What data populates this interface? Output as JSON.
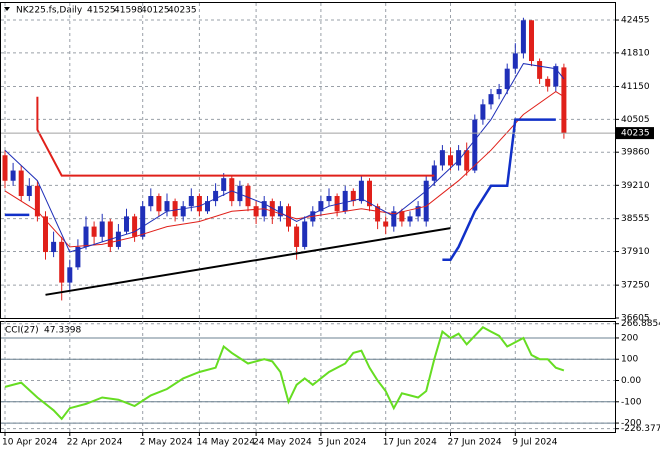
{
  "chart_data": [
    {
      "type": "candlestick",
      "title": "NK225.fs,Daily",
      "categories": [
        "10 Apr 2024",
        null,
        null,
        null,
        null,
        null,
        null,
        null,
        "22 Apr 2024",
        null,
        null,
        null,
        null,
        null,
        null,
        null,
        null,
        "2 May 2024",
        null,
        null,
        null,
        null,
        null,
        null,
        "14 May 2024",
        null,
        null,
        null,
        null,
        null,
        null,
        "24 May 2024",
        null,
        null,
        null,
        null,
        null,
        null,
        null,
        "5 Jun 2024",
        null,
        null,
        null,
        null,
        null,
        null,
        null,
        "17 Jun 2024",
        null,
        null,
        null,
        null,
        null,
        null,
        null,
        "27 Jun 2024",
        null,
        null,
        null,
        null,
        null,
        null,
        null,
        "9 Jul 2024",
        null,
        null,
        null,
        null,
        null,
        null
      ],
      "open": [
        39800,
        39300,
        39500,
        39000,
        39200,
        38600,
        37900,
        38100,
        37300,
        37600,
        38000,
        38400,
        38200,
        38500,
        38000,
        38300,
        38600,
        38200,
        38800,
        39000,
        38700,
        38900,
        38600,
        38800,
        39000,
        38700,
        38900,
        39100,
        39350,
        38900,
        39200,
        38800,
        38600,
        38900,
        38600,
        38800,
        38400,
        38000,
        38500,
        38700,
        38900,
        39000,
        38700,
        39100,
        38900,
        39300,
        38800,
        38500,
        38400,
        38700,
        38500,
        38600,
        38500,
        39300,
        39600,
        39800,
        39600,
        39900,
        39500,
        40500,
        40800,
        41000,
        41100,
        41500,
        41800,
        42450,
        41650,
        41300,
        41150,
        41525
      ],
      "high": [
        39900,
        39650,
        39600,
        39350,
        39300,
        38700,
        38300,
        38200,
        37750,
        38150,
        38600,
        38500,
        38650,
        38550,
        38450,
        38750,
        38650,
        38900,
        39150,
        39050,
        39050,
        38950,
        38900,
        39150,
        39050,
        39000,
        39250,
        39450,
        39400,
        39300,
        39250,
        38900,
        39000,
        38950,
        38900,
        38850,
        38450,
        38600,
        38800,
        39000,
        39150,
        39050,
        39200,
        39150,
        39400,
        39350,
        38850,
        38600,
        38800,
        38750,
        38700,
        38900,
        39400,
        39700,
        40000,
        39950,
        40000,
        40050,
        40600,
        40900,
        41100,
        41200,
        41600,
        42000,
        42500,
        42450,
        41700,
        41350,
        41600,
        41598
      ],
      "low": [
        39150,
        39200,
        38900,
        38900,
        38500,
        37750,
        37800,
        36950,
        37150,
        37550,
        37950,
        38050,
        38100,
        37900,
        37950,
        38250,
        38100,
        38150,
        38700,
        38600,
        38600,
        38500,
        38500,
        38700,
        38600,
        38650,
        38800,
        39000,
        38800,
        38800,
        38700,
        38450,
        38500,
        38450,
        38500,
        38300,
        37750,
        37950,
        38400,
        38600,
        38800,
        38600,
        38650,
        38800,
        38850,
        38700,
        38350,
        38250,
        38300,
        38400,
        38400,
        38500,
        38400,
        39200,
        39500,
        39500,
        39500,
        39400,
        39450,
        40400,
        40700,
        40900,
        41000,
        41400,
        41700,
        41550,
        41200,
        41050,
        41050,
        40125
      ],
      "close": [
        39300,
        39500,
        39000,
        39200,
        38600,
        37900,
        38100,
        37300,
        37600,
        38000,
        38400,
        38200,
        38500,
        38000,
        38300,
        38600,
        38200,
        38800,
        39000,
        38700,
        38900,
        38600,
        38800,
        39000,
        38700,
        38900,
        39100,
        39350,
        38900,
        39200,
        38800,
        38600,
        38900,
        38600,
        38800,
        38400,
        38000,
        38500,
        38700,
        38900,
        39000,
        38700,
        39100,
        38900,
        39300,
        38800,
        38500,
        38400,
        38700,
        38500,
        38600,
        38800,
        39300,
        39600,
        39900,
        39600,
        39900,
        39500,
        40500,
        40800,
        41000,
        41100,
        41500,
        41800,
        42450,
        41650,
        41300,
        41150,
        41550,
        40235
      ],
      "up_color": "#1f2fb8",
      "down_color": "#e0201a",
      "ylim": [
        36605,
        42809
      ],
      "yticks": [
        42455,
        41810,
        41150,
        40505,
        39860,
        39210,
        38555,
        37910,
        37250,
        36605
      ],
      "grid": true,
      "overlays": [
        {
          "color": "#e0201a",
          "width": 1,
          "x": [
            0,
            4,
            8,
            12,
            16,
            20,
            24,
            28,
            32,
            36,
            40,
            44,
            48,
            52,
            56,
            60,
            64,
            68,
            69
          ],
          "values": [
            39100,
            38700,
            38000,
            38050,
            38200,
            38400,
            38500,
            38700,
            38750,
            38550,
            38650,
            38750,
            38650,
            38800,
            39300,
            39900,
            40600,
            41050,
            40950
          ]
        },
        {
          "color": "#1f2fb8",
          "width": 1,
          "x": [
            0,
            4,
            8,
            12,
            16,
            20,
            24,
            28,
            32,
            36,
            40,
            44,
            48,
            52,
            56,
            60,
            64,
            68,
            69
          ],
          "values": [
            39900,
            39300,
            37900,
            38100,
            38300,
            38700,
            38800,
            39100,
            38850,
            38500,
            38800,
            38950,
            38600,
            39100,
            39700,
            40500,
            41600,
            41500,
            41300
          ]
        },
        {
          "color": "#e0201a",
          "width": 2,
          "x": [
            4,
            4,
            7,
            53
          ],
          "values": [
            40950,
            40300,
            39400,
            39400
          ]
        },
        {
          "color": "#1130c8",
          "width": 2.5,
          "x": [
            0,
            3,
            53,
            54,
            55,
            56,
            58,
            60,
            62,
            63,
            68
          ],
          "values": [
            38630,
            38630,
            null,
            37750,
            37750,
            38000,
            38700,
            39200,
            39200,
            40500,
            40500
          ]
        },
        {
          "color": "#000000",
          "width": 2,
          "x": [
            5,
            55
          ],
          "values": [
            37060,
            38370
          ]
        }
      ]
    },
    {
      "type": "line",
      "title": "CCI(27)",
      "color": "#66dd22",
      "x": [
        0,
        2,
        4,
        6,
        7,
        8,
        10,
        12,
        14,
        16,
        18,
        20,
        22,
        24,
        26,
        27,
        28,
        30,
        32,
        33,
        34,
        35,
        36,
        37,
        38,
        40,
        42,
        43,
        44,
        45,
        46,
        47,
        48,
        49,
        50,
        51,
        52,
        53,
        54,
        55,
        56,
        57,
        58,
        59,
        60,
        61,
        62,
        63,
        64,
        65,
        66,
        67,
        68,
        69
      ],
      "values": [
        -30,
        -10,
        -80,
        -140,
        -180,
        -130,
        -110,
        -80,
        -90,
        -120,
        -70,
        -40,
        10,
        40,
        60,
        160,
        130,
        80,
        100,
        90,
        40,
        -100,
        -20,
        10,
        -20,
        40,
        80,
        130,
        140,
        60,
        0,
        -50,
        -130,
        -60,
        -70,
        -80,
        -50,
        100,
        230,
        200,
        220,
        170,
        210,
        250,
        230,
        210,
        160,
        180,
        200,
        120,
        100,
        100,
        60,
        47.3398
      ],
      "ylim": [
        -242,
        275
      ],
      "yticks": [
        266.8854,
        200,
        100,
        {
          "value": 0,
          "label": "0.00"
        },
        -100,
        -200,
        -226.377
      ],
      "levels": [
        200,
        100,
        -100,
        -200
      ],
      "grid": true
    }
  ]
}
